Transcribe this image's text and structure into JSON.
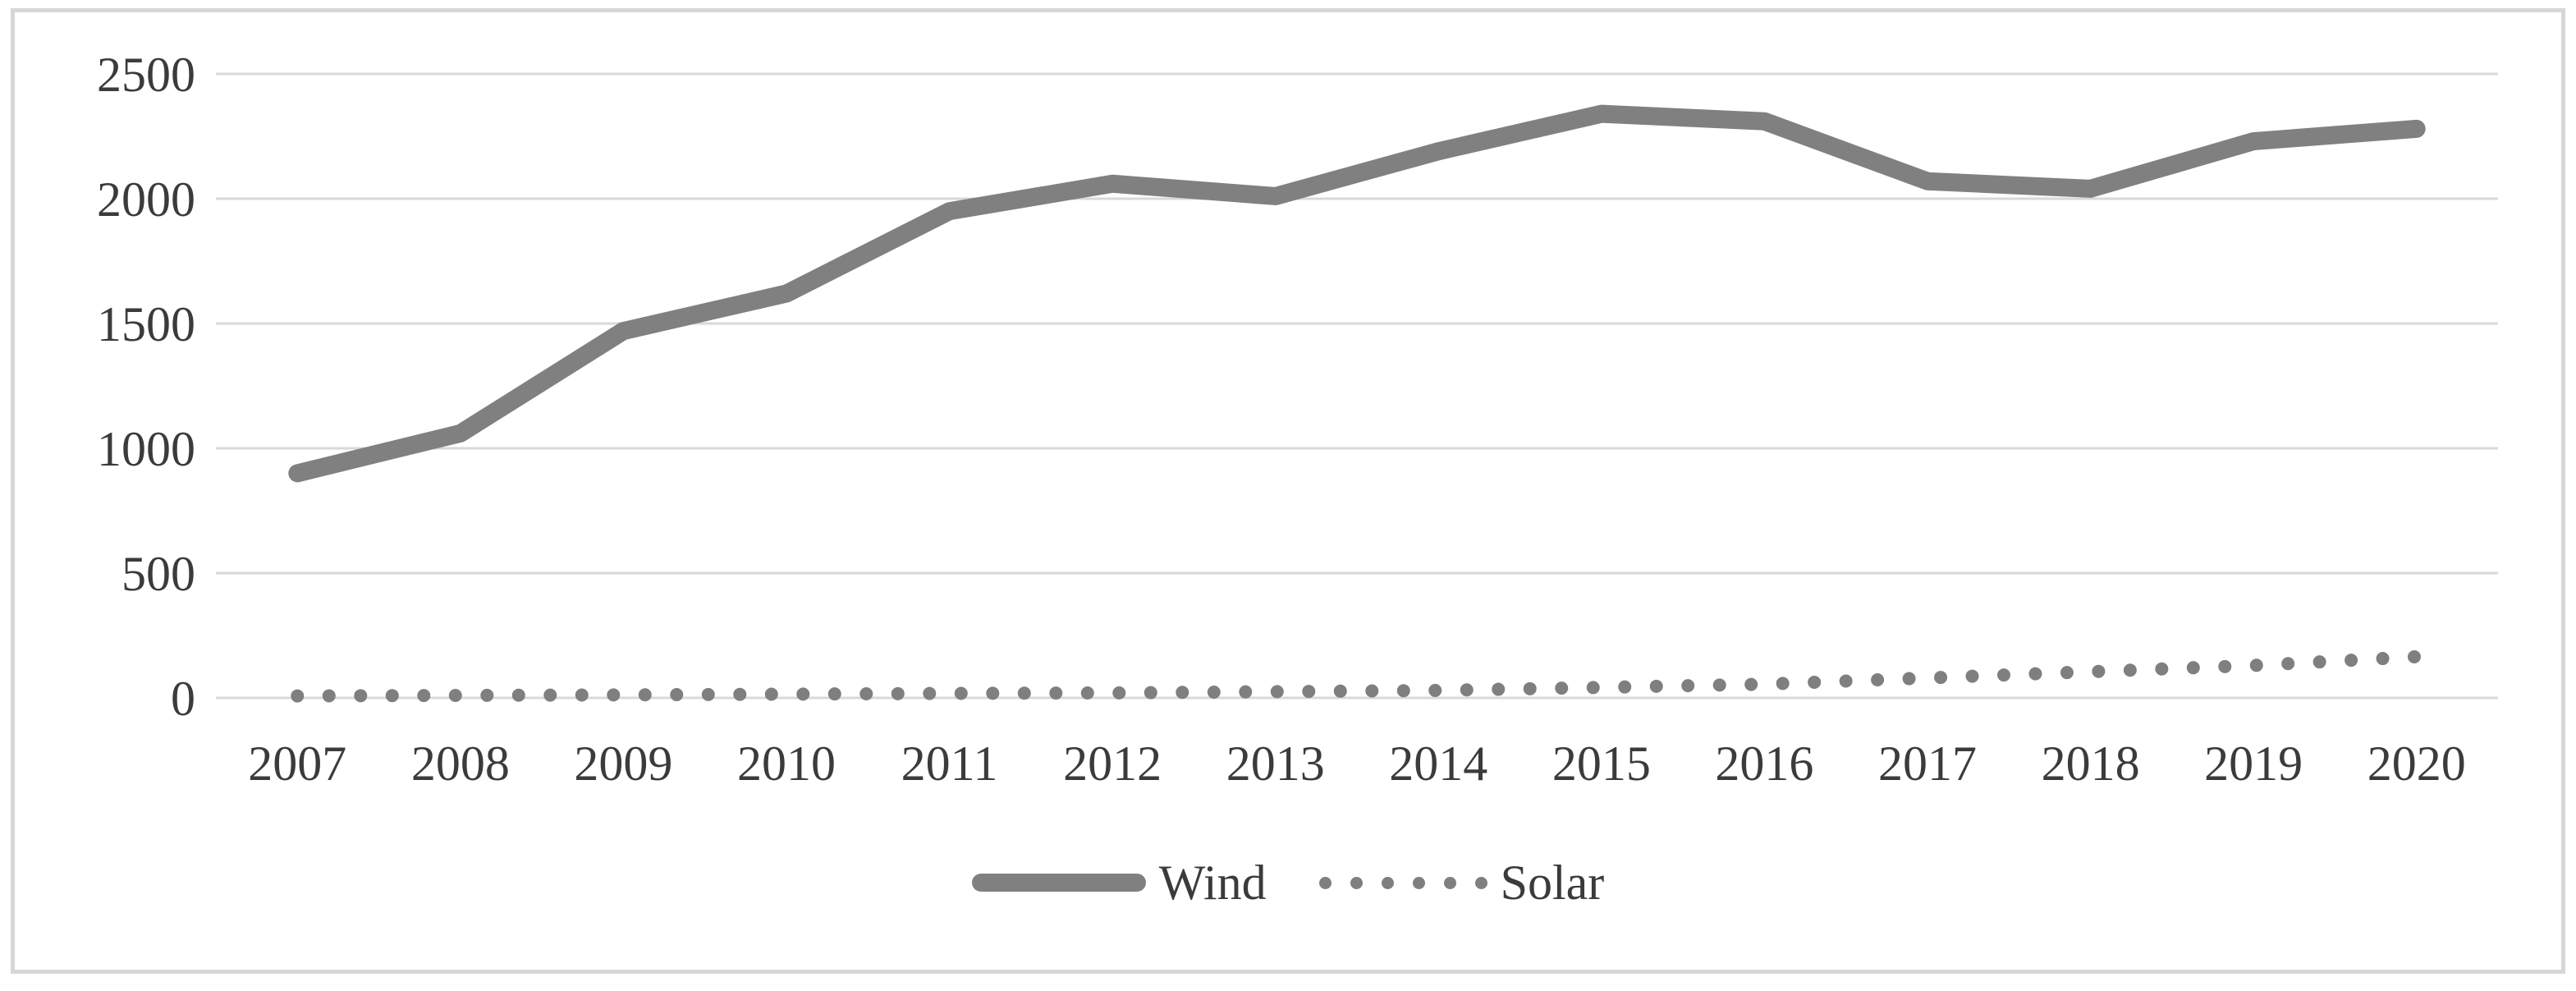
{
  "chart": {
    "background_color": "#ffffff",
    "frame_color": "#d6d6d6",
    "gridline_color": "#d9d9d9",
    "tick_label_color": "#3b3b3b"
  },
  "chart_data": {
    "type": "line",
    "title": "",
    "xlabel": "",
    "ylabel": "",
    "categories": [
      "2007",
      "2008",
      "2009",
      "2010",
      "2011",
      "2012",
      "2013",
      "2014",
      "2015",
      "2016",
      "2017",
      "2018",
      "2019",
      "2020"
    ],
    "series": [
      {
        "name": "Wind",
        "style": "solid",
        "color": "#808080",
        "values": [
          900,
          1060,
          1470,
          1620,
          1950,
          2060,
          2010,
          2190,
          2340,
          2310,
          2070,
          2040,
          2230,
          2280
        ]
      },
      {
        "name": "Solar",
        "style": "dotted",
        "color": "#7f7f7f",
        "values": [
          8,
          10,
          12,
          15,
          18,
          20,
          25,
          30,
          42,
          55,
          80,
          105,
          130,
          165
        ]
      }
    ],
    "ylim": [
      0,
      2500
    ],
    "yticks": [
      0,
      500,
      1000,
      1500,
      2000,
      2500
    ],
    "grid": "horizontal",
    "legend_position": "bottom-center"
  }
}
